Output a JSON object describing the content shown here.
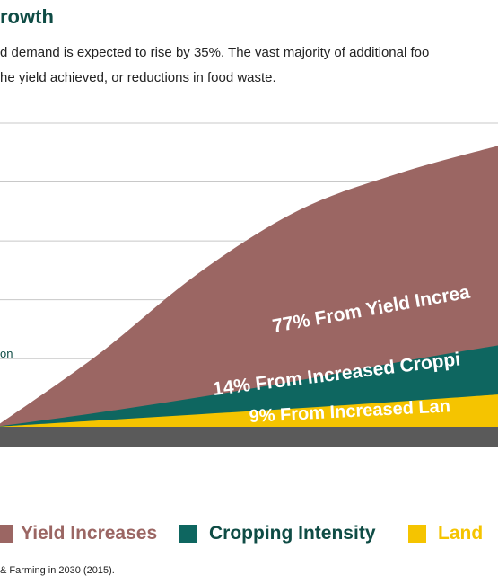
{
  "header": {
    "title": "rowth",
    "subtitle_line1": "d demand is expected to rise by 35%. The vast majority of additional foo",
    "subtitle_line2": "he yield achieved, or reductions in food waste."
  },
  "chart_data": {
    "type": "area",
    "title": "rowth",
    "x": [
      0,
      0.2,
      0.4,
      0.6,
      0.8,
      1.0
    ],
    "ylim": [
      0,
      1
    ],
    "grid": true,
    "series": [
      {
        "name": "Land",
        "color": "#f5c400",
        "values": [
          0.0,
          0.02,
          0.04,
          0.06,
          0.082,
          0.105
        ]
      },
      {
        "name": "Cropping Intensity",
        "color": "#0e6660",
        "values": [
          0.0,
          0.045,
          0.095,
          0.15,
          0.21,
          0.265
        ]
      },
      {
        "name": "Yield Increases",
        "color": "#9b6663",
        "values": [
          0.0,
          0.23,
          0.495,
          0.7,
          0.82,
          0.91
        ]
      }
    ],
    "baseline_color": "#5a5a5a",
    "annotations": [
      {
        "text": "77% From Yield Increa",
        "series": "Yield Increases",
        "color": "#ffffff"
      },
      {
        "text": "14% From Increased Croppi",
        "series": "Cropping Intensity",
        "color": "#ffffff"
      },
      {
        "text": "9% From Increased Lan",
        "series": "Land",
        "color": "#ffffff"
      },
      {
        "text": "on",
        "color": "#0f4c45"
      }
    ]
  },
  "legend": [
    {
      "label": "Yield Increases",
      "color": "#9b6663"
    },
    {
      "label": "Cropping Intensity",
      "color": "#0e6660"
    },
    {
      "label": "Land",
      "color": "#f5c400"
    }
  ],
  "source": "& Farming in 2030 (2015)."
}
